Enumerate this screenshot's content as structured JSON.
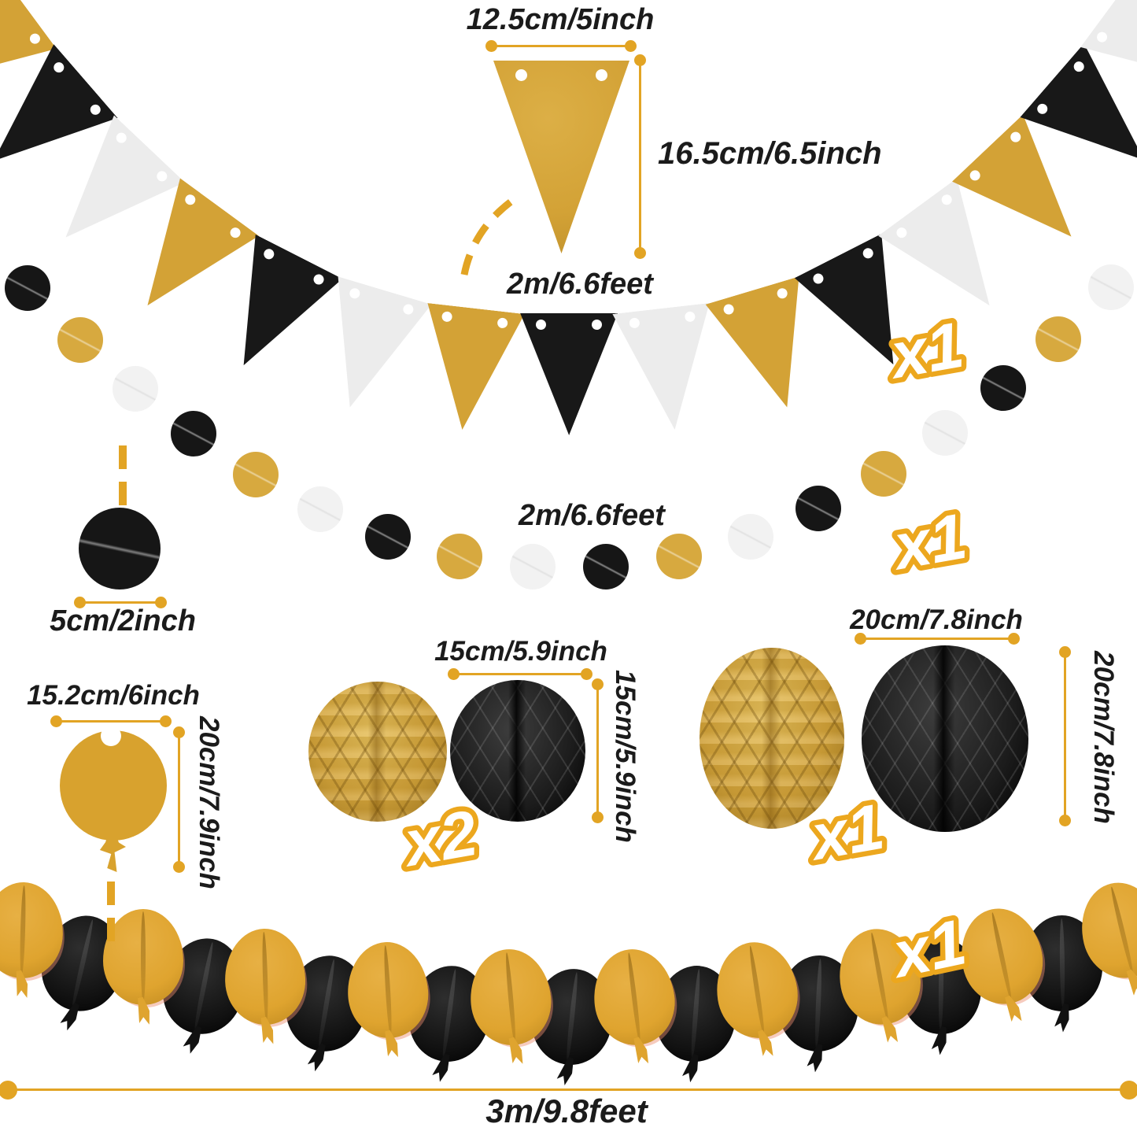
{
  "colors": {
    "accent": "#E2A424",
    "marker": "#ECA71E",
    "text": "#1B1B1B",
    "gold": "#D3A236",
    "black": "#181818",
    "white": "#ECECEC",
    "gold_circle": "#D7A93F",
    "white_circle": "#F2F2F2",
    "black_circle": "#161616",
    "balloon_gold": "#DFA42F",
    "balloon_black": "#111111",
    "cutout_gold": "#D8A22E"
  },
  "banner": {
    "flag_colors": [
      "gold",
      "black",
      "white",
      "gold",
      "black",
      "white",
      "gold",
      "black",
      "white",
      "gold",
      "black",
      "white",
      "gold",
      "black",
      "white"
    ],
    "flag_width_label": "12.5cm/5inch",
    "flag_height_label": "16.5cm/6.5inch",
    "length_label": "2m/6.6feet",
    "count_label": "x1"
  },
  "circle_garland": {
    "circle_colors": [
      "black",
      "gold",
      "white",
      "black",
      "gold",
      "white",
      "black",
      "gold",
      "white",
      "black",
      "gold",
      "white",
      "black",
      "gold",
      "white",
      "black",
      "gold",
      "white"
    ],
    "length_label": "2m/6.6feet",
    "dot_size_label": "5cm/2inch",
    "count_label": "x1"
  },
  "balloon_cutout": {
    "width_label": "15.2cm/6inch",
    "height_label": "20cm/7.9inch"
  },
  "honeycomb_small": {
    "colors": [
      "gold",
      "black"
    ],
    "size_label": "15cm/5.9inch",
    "size_label_vertical": "15cm/5.9inch",
    "count_label": "x2"
  },
  "honeycomb_large": {
    "colors": [
      "gold",
      "black"
    ],
    "size_label": "20cm/7.8inch",
    "size_label_vertical": "20cm/7.8inch",
    "count_label": "x1"
  },
  "balloon_garland": {
    "balloon_colors": [
      "gold",
      "black",
      "gold",
      "black",
      "gold",
      "black",
      "gold",
      "black",
      "gold",
      "black",
      "gold",
      "black",
      "gold",
      "black",
      "gold",
      "black",
      "gold",
      "black",
      "gold"
    ],
    "length_label": "3m/9.8feet",
    "count_label": "x1"
  }
}
